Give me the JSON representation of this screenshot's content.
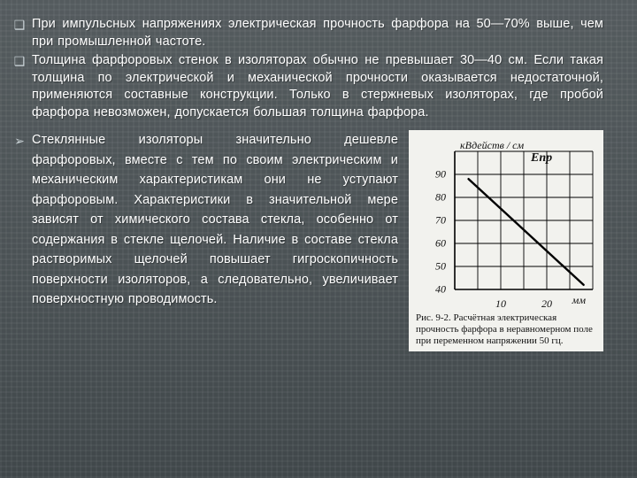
{
  "bullets": {
    "square": "❑",
    "arrow": "➢",
    "b1": "При импульсных напряжениях электрическая прочность фарфора на 50—70% выше, чем при промышленной частоте.",
    "b2": "Толщина фарфоровых стенок в изоляторах обычно не превышает 30—40 см. Если такая толщина по электрической и механической прочности оказывается недостаточной, применяются составные конструкции. Только в стержневых изоляторах, где пробой фарфора невозможен, допускается большая толщина фарфора.",
    "b3": "Стеклянные изоляторы значительно дешевле фарфоровых, вместе с тем по своим электрическим и механическим характеристикам они не уступают фарфоровым. Характеристики в значительной мере зависят от химического состава стекла, особенно от содержания в стекле щелочей. Наличие в составе стекла растворимых щелочей повышает гигроскопичность поверхности изоляторов, а следовательно, увеличивает поверхностную проводимость."
  },
  "chart": {
    "yunit_label": "кВдейств / см",
    "epr_label": "Eпр",
    "xunit_label": "мм",
    "caption": "Рис. 9-2. Расчётная электрическая прочность фарфора в неравномерном поле при переменном напряжении 50 гц.",
    "grid": {
      "cols": 6,
      "rows": 6,
      "cell": 26,
      "ox": 46,
      "oy": 18
    },
    "yticks": [
      {
        "v": 90,
        "label": "90"
      },
      {
        "v": 80,
        "label": "80"
      },
      {
        "v": 70,
        "label": "70"
      },
      {
        "v": 60,
        "label": "60"
      },
      {
        "v": 50,
        "label": "50"
      },
      {
        "v": 40,
        "label": "40"
      }
    ],
    "xticks": [
      {
        "v": 10,
        "label": "10"
      },
      {
        "v": 20,
        "label": "20"
      }
    ],
    "xrange": [
      0,
      30
    ],
    "yrange": [
      40,
      100
    ],
    "line": {
      "p1": [
        3,
        88
      ],
      "p2": [
        28,
        42
      ],
      "color": "#000000",
      "width": 2.4
    }
  }
}
